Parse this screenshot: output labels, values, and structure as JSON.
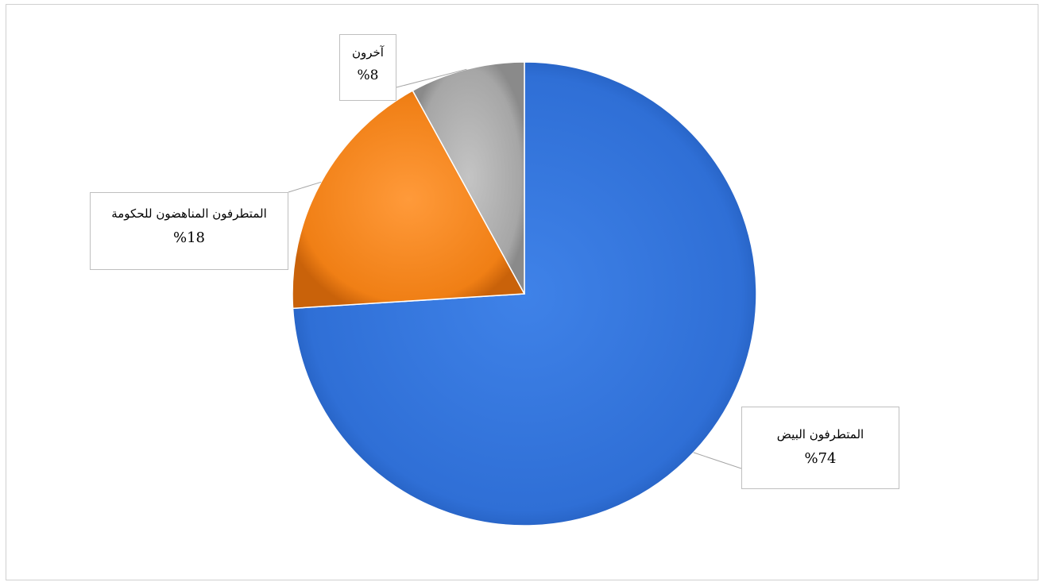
{
  "chart_data": {
    "type": "pie",
    "title": "",
    "slices": [
      {
        "label": "المتطرفون البيض",
        "value": 74,
        "display": "%74",
        "color": "#2f6fd6"
      },
      {
        "label": "المتطرفون المناهضون للحكومة",
        "value": 18,
        "display": "%18",
        "color": "#f07f15"
      },
      {
        "label": "آخرون",
        "value": 8,
        "display": "%8",
        "color": "#a6a6a6"
      }
    ],
    "start_angle": "12 o'clock",
    "direction": "clockwise",
    "legend": "none",
    "data_labels": "callout boxes with leader lines"
  }
}
